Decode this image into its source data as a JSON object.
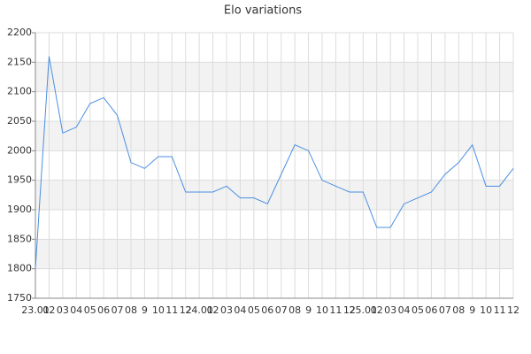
{
  "chart_data": {
    "type": "line",
    "title": "Elo variations",
    "categories": [
      "23.01",
      "02",
      "03",
      "04",
      "05",
      "06",
      "07",
      "08",
      "9",
      "10",
      "11",
      "12",
      "24.01",
      "02",
      "03",
      "04",
      "05",
      "06",
      "07",
      "08",
      "9",
      "10",
      "11",
      "12",
      "25.01",
      "02",
      "03",
      "04",
      "05",
      "06",
      "07",
      "08",
      "9",
      "10",
      "11",
      "12"
    ],
    "values": [
      1800,
      2160,
      2030,
      2040,
      2080,
      2090,
      2060,
      1980,
      1970,
      1990,
      1990,
      1930,
      1930,
      1930,
      1940,
      1920,
      1920,
      1910,
      1960,
      2010,
      2000,
      1950,
      1940,
      1930,
      1930,
      1870,
      1870,
      1910,
      1920,
      1930,
      1960,
      1980,
      2010,
      1940,
      1940,
      1970
    ],
    "color": "#4a8fe0",
    "ylim": [
      1750,
      2200
    ],
    "yticks": [
      1750,
      1800,
      1850,
      1900,
      1950,
      2000,
      2050,
      2100,
      2150,
      2200
    ],
    "grid": true
  }
}
